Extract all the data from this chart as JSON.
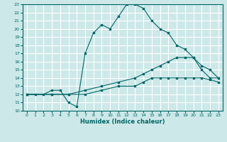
{
  "background_color": "#cde8e8",
  "grid_color": "#ffffff",
  "line_color": "#006666",
  "xlabel": "Humidex (Indice chaleur)",
  "xlim": [
    -0.5,
    23.5
  ],
  "ylim": [
    10,
    23
  ],
  "xticks": [
    0,
    1,
    2,
    3,
    4,
    5,
    6,
    7,
    8,
    9,
    10,
    11,
    12,
    13,
    14,
    15,
    16,
    17,
    18,
    19,
    20,
    21,
    22,
    23
  ],
  "yticks": [
    10,
    11,
    12,
    13,
    14,
    15,
    16,
    17,
    18,
    19,
    20,
    21,
    22,
    23
  ],
  "series": [
    {
      "x": [
        0,
        1,
        2,
        3,
        4,
        5,
        6,
        7,
        8,
        9,
        10,
        11,
        12,
        13,
        14,
        15,
        16,
        17,
        18,
        19,
        20,
        21,
        22,
        23
      ],
      "y": [
        12,
        12,
        12,
        12.5,
        12.5,
        11,
        10.5,
        17,
        19.5,
        20.5,
        20,
        21.5,
        23,
        23,
        22.5,
        21,
        20,
        19.5,
        18,
        17.5,
        16.5,
        15,
        14,
        14
      ]
    },
    {
      "x": [
        0,
        3,
        5,
        7,
        9,
        11,
        13,
        14,
        15,
        16,
        17,
        18,
        19,
        20,
        21,
        22,
        23
      ],
      "y": [
        12,
        12,
        12,
        12.5,
        13,
        13.5,
        14,
        14.5,
        15,
        15.5,
        16,
        16.5,
        16.5,
        16.5,
        15.5,
        15,
        14
      ]
    },
    {
      "x": [
        0,
        3,
        5,
        7,
        9,
        11,
        13,
        14,
        15,
        16,
        17,
        18,
        19,
        20,
        21,
        22,
        23
      ],
      "y": [
        12,
        12,
        12,
        12,
        12.5,
        13,
        13,
        13.5,
        14,
        14,
        14,
        14,
        14,
        14,
        14,
        13.8,
        13.5
      ]
    }
  ]
}
